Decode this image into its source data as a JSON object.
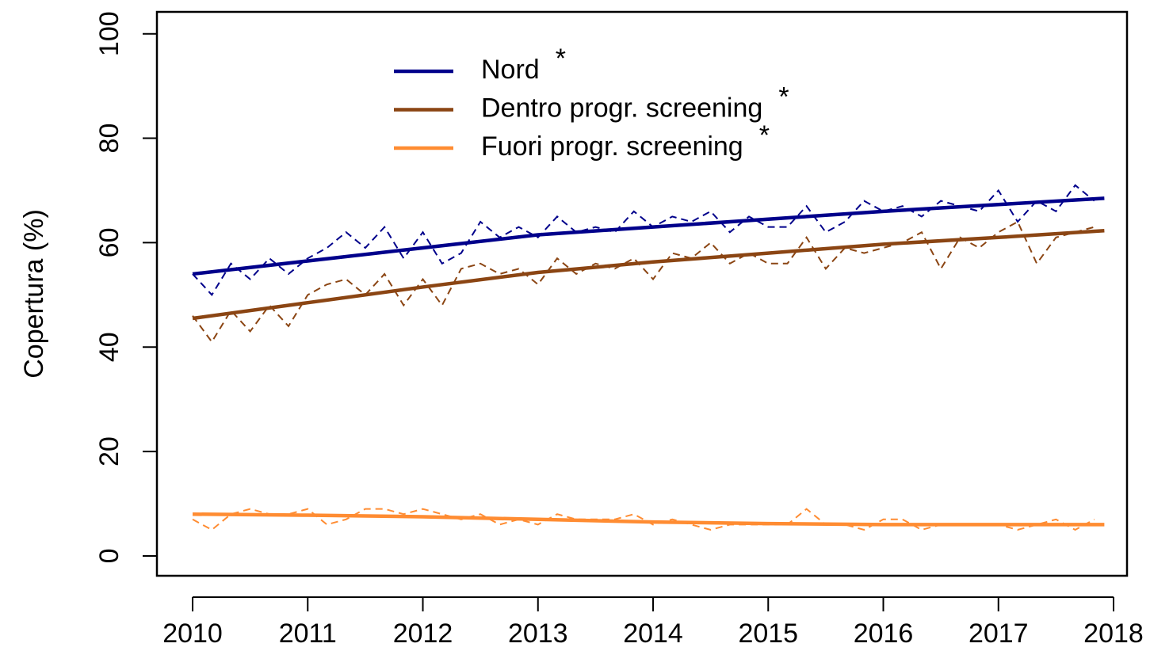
{
  "chart_data": {
    "type": "line",
    "y_label": "Copertura (%)",
    "xlim": [
      2009.69,
      2018.117
    ],
    "ylim": [
      -3.8,
      104.2
    ],
    "xticks": [
      2010,
      2011,
      2012,
      2013,
      2014,
      2015,
      2016,
      2017,
      2018
    ],
    "yticks": [
      0,
      20,
      40,
      60,
      80,
      100
    ],
    "legend": "top",
    "x": [
      2010,
      2010.167,
      2010.333,
      2010.5,
      2010.667,
      2010.833,
      2011,
      2011.167,
      2011.333,
      2011.5,
      2011.667,
      2011.833,
      2012,
      2012.167,
      2012.333,
      2012.5,
      2012.667,
      2012.833,
      2013,
      2013.167,
      2013.333,
      2013.5,
      2013.667,
      2013.833,
      2014,
      2014.167,
      2014.333,
      2014.5,
      2014.667,
      2014.833,
      2015,
      2015.167,
      2015.333,
      2015.5,
      2015.667,
      2015.833,
      2016,
      2016.167,
      2016.333,
      2016.5,
      2016.667,
      2016.833,
      2017,
      2017.167,
      2017.333,
      2017.5,
      2017.667,
      2017.833
    ],
    "trend_x": [
      2010,
      2011,
      2012,
      2013,
      2014,
      2015,
      2016,
      2017,
      2017.92
    ],
    "series": [
      {
        "name": "Nord",
        "significance": "*",
        "color": "#00008b",
        "values": [
          54,
          50,
          56,
          53,
          57,
          54,
          57,
          59,
          62,
          59,
          63,
          57,
          62,
          56,
          58,
          64,
          61,
          63,
          61,
          65,
          62,
          63,
          62,
          66,
          63,
          65,
          64,
          66,
          62,
          65,
          63,
          63,
          67,
          62,
          64,
          68,
          66,
          67,
          65,
          68,
          67,
          66,
          70,
          64,
          68,
          66,
          71,
          68
        ],
        "trend": [
          54,
          56.5,
          59,
          61.5,
          63,
          64.5,
          66,
          67.3,
          68.5
        ]
      },
      {
        "name": "Dentro progr. screening",
        "significance": "*",
        "color": "#8b4513",
        "values": [
          46,
          41,
          47,
          43,
          48,
          44,
          50,
          52,
          53,
          50,
          54,
          48,
          53,
          48,
          55,
          56,
          54,
          55,
          52,
          57,
          54,
          56,
          55,
          57,
          53,
          58,
          57,
          60,
          56,
          58,
          56,
          56,
          61,
          55,
          59,
          58,
          59,
          60,
          62,
          55,
          61,
          59,
          62,
          64,
          56,
          61,
          62,
          63
        ],
        "trend": [
          45.5,
          48.5,
          51.5,
          54.3,
          56.3,
          58,
          59.7,
          61,
          62.3
        ]
      },
      {
        "name": "Fuori progr. screening",
        "significance": "*",
        "color": "#ff8c32",
        "values": [
          7,
          5,
          8,
          9,
          8,
          8,
          9,
          6,
          7,
          9,
          9,
          8,
          9,
          8,
          7,
          8,
          6,
          7,
          6,
          8,
          7,
          7,
          7,
          8,
          6,
          7,
          6,
          5,
          6,
          6,
          6,
          6,
          9,
          6,
          6,
          5,
          7,
          7,
          5,
          6,
          6,
          6,
          6,
          5,
          6,
          7,
          5,
          7
        ],
        "trend": [
          8,
          7.8,
          7.5,
          7,
          6.5,
          6.2,
          6,
          6,
          6
        ]
      }
    ]
  }
}
